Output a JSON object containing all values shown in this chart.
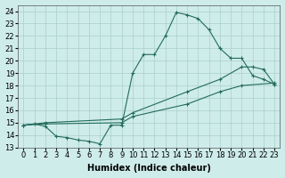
{
  "xlabel": "Humidex (Indice chaleur)",
  "xlim": [
    -0.5,
    23.5
  ],
  "ylim": [
    13,
    24.5
  ],
  "xticks": [
    0,
    1,
    2,
    3,
    4,
    5,
    6,
    7,
    8,
    9,
    10,
    11,
    12,
    13,
    14,
    15,
    16,
    17,
    18,
    19,
    20,
    21,
    22,
    23
  ],
  "yticks": [
    13,
    14,
    15,
    16,
    17,
    18,
    19,
    20,
    21,
    22,
    23,
    24
  ],
  "bg_color": "#ceecea",
  "line_color": "#236b5e",
  "grid_color": "#aacfcc",
  "line1_x": [
    0,
    1,
    2,
    3,
    4,
    5,
    6,
    7,
    8,
    9,
    10,
    11,
    12,
    13,
    14,
    15,
    16,
    17,
    18,
    19,
    20,
    21,
    22,
    23
  ],
  "line1_y": [
    14.8,
    14.9,
    14.7,
    13.9,
    13.8,
    13.6,
    13.5,
    13.3,
    14.8,
    14.8,
    19.0,
    20.5,
    20.5,
    22.0,
    23.9,
    23.7,
    23.4,
    22.5,
    21.0,
    20.2,
    20.2,
    18.8,
    18.5,
    18.1
  ],
  "line2_x": [
    0,
    2,
    9,
    10,
    15,
    18,
    20,
    21,
    22,
    23
  ],
  "line2_y": [
    14.8,
    15.0,
    15.3,
    15.8,
    17.5,
    18.5,
    19.5,
    19.5,
    19.3,
    18.1
  ],
  "line3_x": [
    0,
    2,
    9,
    10,
    15,
    18,
    20,
    23
  ],
  "line3_y": [
    14.8,
    14.9,
    15.0,
    15.5,
    16.5,
    17.5,
    18.0,
    18.2
  ],
  "fontsize_label": 7,
  "fontsize_tick": 6
}
